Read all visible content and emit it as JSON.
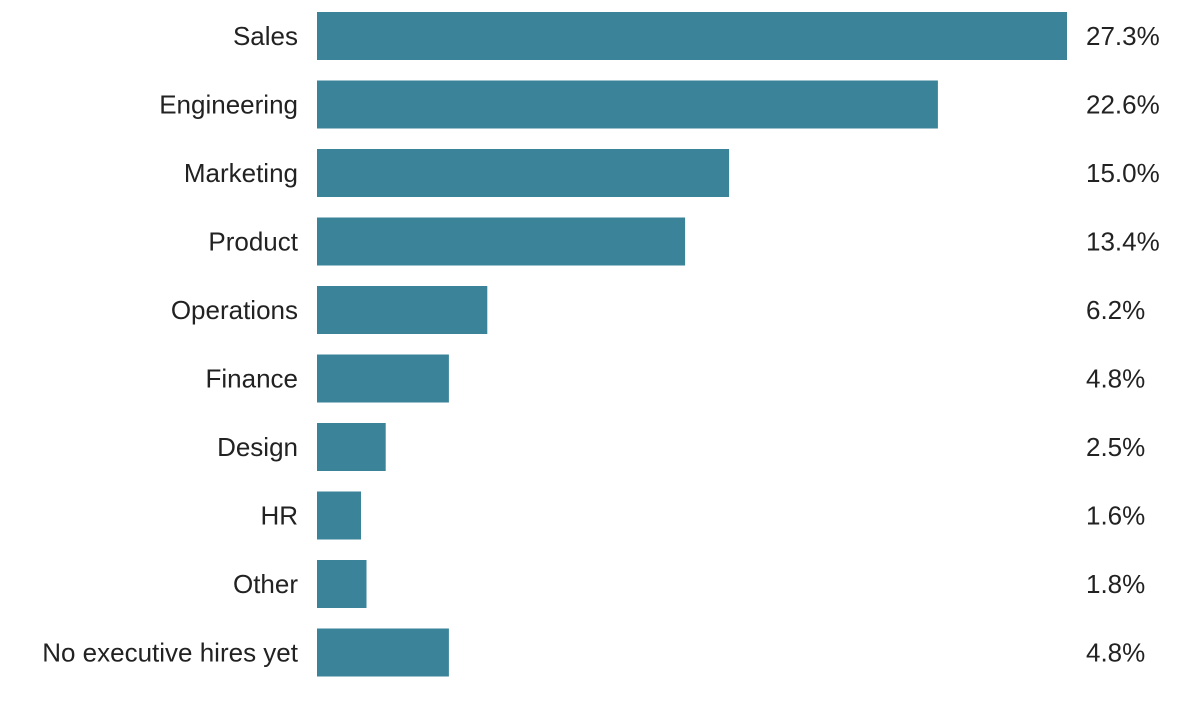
{
  "chart_data": {
    "type": "bar",
    "orientation": "horizontal",
    "title": "",
    "xlabel": "",
    "ylabel": "",
    "xlim": [
      0,
      27.3
    ],
    "grid": false,
    "legend": "none",
    "value_suffix": "%",
    "bar_color": "#3a8399",
    "categories": [
      "Sales",
      "Engineering",
      "Marketing",
      "Product",
      "Operations",
      "Finance",
      "Design",
      "HR",
      "Other",
      "No executive hires yet"
    ],
    "values": [
      27.3,
      22.6,
      15.0,
      13.4,
      6.2,
      4.8,
      2.5,
      1.6,
      1.8,
      4.8
    ],
    "data_labels": [
      "27.3%",
      "22.6%",
      "15.0%",
      "13.4%",
      "6.2%",
      "4.8%",
      "2.5%",
      "1.6%",
      "1.8%",
      "4.8%"
    ]
  }
}
